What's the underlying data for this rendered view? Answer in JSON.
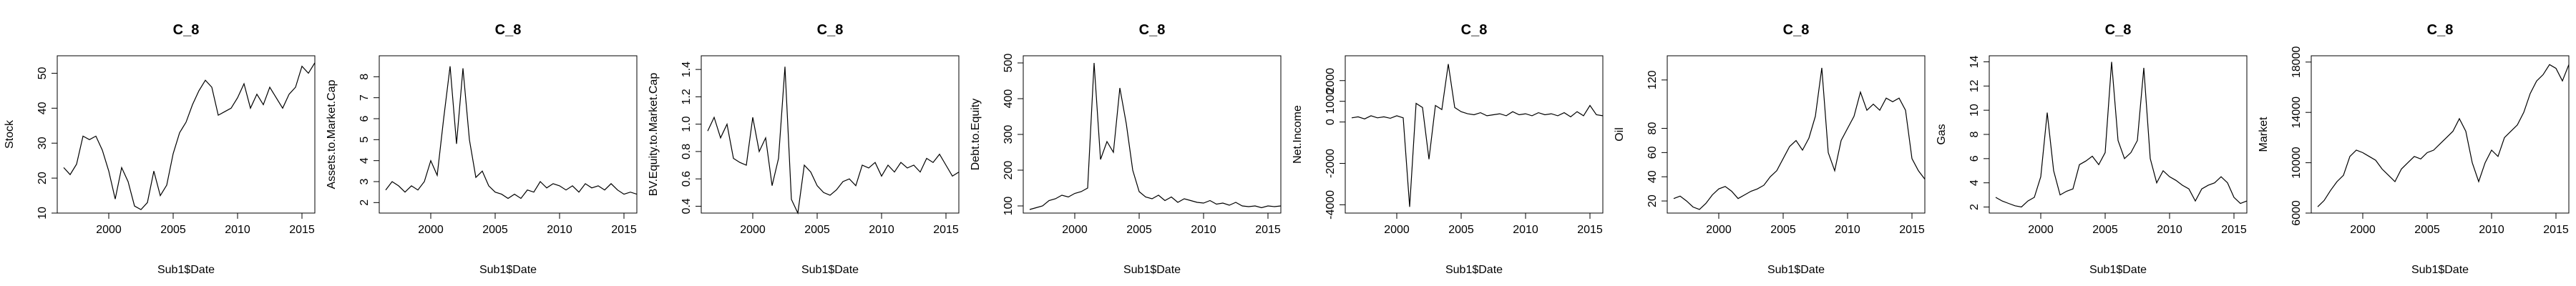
{
  "chart_data": [
    {
      "type": "line",
      "title": "C_8",
      "xlabel": "Sub1$Date",
      "ylabel": "Stock",
      "xlim": [
        1996,
        2016
      ],
      "ylim": [
        10,
        55
      ],
      "xticks": [
        "2000",
        "2005",
        "2010",
        "2015"
      ],
      "yticks": [
        "10",
        "20",
        "30",
        "40",
        "50"
      ],
      "x": [
        1996.5,
        1997,
        1997.5,
        1998,
        1998.5,
        1999,
        1999.5,
        2000,
        2000.5,
        2001,
        2001.5,
        2002,
        2002.5,
        2003,
        2003.5,
        2004,
        2004.5,
        2005,
        2005.5,
        2006,
        2006.5,
        2007,
        2007.5,
        2008,
        2008.5,
        2009,
        2009.5,
        2010,
        2010.5,
        2011,
        2011.5,
        2012,
        2012.5,
        2013,
        2013.5,
        2014,
        2014.5,
        2015,
        2015.5,
        2016
      ],
      "y": [
        23,
        21,
        24,
        32,
        31,
        32,
        28,
        22,
        14,
        23,
        19,
        12,
        11,
        13,
        22,
        15,
        18,
        27,
        33,
        36,
        41,
        45,
        48,
        46,
        38,
        39,
        40,
        43,
        47,
        40,
        44,
        41,
        46,
        43,
        40,
        44,
        46,
        52,
        50,
        53
      ]
    },
    {
      "type": "line",
      "title": "C_8",
      "xlabel": "Sub1$Date",
      "ylabel": "Assets.to.Market.Cap",
      "xlim": [
        1996,
        2016
      ],
      "ylim": [
        1.5,
        9
      ],
      "xticks": [
        "2000",
        "2005",
        "2010",
        "2015"
      ],
      "yticks": [
        "2",
        "3",
        "4",
        "5",
        "6",
        "7",
        "8"
      ],
      "x": [
        1996.5,
        1997,
        1997.5,
        1998,
        1998.5,
        1999,
        1999.5,
        2000,
        2000.5,
        2001,
        2001.5,
        2002,
        2002.5,
        2003,
        2003.5,
        2004,
        2004.5,
        2005,
        2005.5,
        2006,
        2006.5,
        2007,
        2007.5,
        2008,
        2008.5,
        2009,
        2009.5,
        2010,
        2010.5,
        2011,
        2011.5,
        2012,
        2012.5,
        2013,
        2013.5,
        2014,
        2014.5,
        2015,
        2015.5,
        2016
      ],
      "y": [
        2.6,
        3.0,
        2.8,
        2.5,
        2.8,
        2.6,
        3.0,
        4.0,
        3.3,
        6.0,
        8.5,
        4.8,
        8.4,
        5.0,
        3.2,
        3.5,
        2.8,
        2.5,
        2.4,
        2.2,
        2.4,
        2.2,
        2.6,
        2.5,
        3.0,
        2.7,
        2.9,
        2.8,
        2.6,
        2.8,
        2.5,
        2.9,
        2.7,
        2.8,
        2.6,
        2.9,
        2.6,
        2.4,
        2.5,
        2.4
      ]
    },
    {
      "type": "line",
      "title": "C_8",
      "xlabel": "Sub1$Date",
      "ylabel": "BV.Equity.to.Market.Cap",
      "xlim": [
        1996,
        2016
      ],
      "ylim": [
        0.35,
        1.5
      ],
      "xticks": [
        "2000",
        "2005",
        "2010",
        "2015"
      ],
      "yticks": [
        "0.4",
        "0.6",
        "0.8",
        "1.0",
        "1.2",
        "1.4"
      ],
      "x": [
        1996.5,
        1997,
        1997.5,
        1998,
        1998.5,
        1999,
        1999.5,
        2000,
        2000.5,
        2001,
        2001.5,
        2002,
        2002.5,
        2003,
        2003.5,
        2004,
        2004.5,
        2005,
        2005.5,
        2006,
        2006.5,
        2007,
        2007.5,
        2008,
        2008.5,
        2009,
        2009.5,
        2010,
        2010.5,
        2011,
        2011.5,
        2012,
        2012.5,
        2013,
        2013.5,
        2014,
        2014.5,
        2015,
        2015.5,
        2016
      ],
      "y": [
        0.95,
        1.05,
        0.9,
        1.0,
        0.75,
        0.72,
        0.7,
        1.05,
        0.8,
        0.9,
        0.55,
        0.75,
        1.42,
        0.45,
        0.35,
        0.7,
        0.65,
        0.55,
        0.5,
        0.48,
        0.52,
        0.58,
        0.6,
        0.55,
        0.7,
        0.68,
        0.72,
        0.62,
        0.7,
        0.65,
        0.72,
        0.68,
        0.7,
        0.65,
        0.75,
        0.72,
        0.78,
        0.7,
        0.62,
        0.65
      ]
    },
    {
      "type": "line",
      "title": "C_8",
      "xlabel": "Sub1$Date",
      "ylabel": "Debt.to.Equity",
      "xlim": [
        1996,
        2016
      ],
      "ylim": [
        80,
        520
      ],
      "xticks": [
        "2000",
        "2005",
        "2010",
        "2015"
      ],
      "yticks": [
        "100",
        "200",
        "300",
        "400",
        "500"
      ],
      "x": [
        1996.5,
        1997,
        1997.5,
        1998,
        1998.5,
        1999,
        1999.5,
        2000,
        2000.5,
        2001,
        2001.5,
        2002,
        2002.5,
        2003,
        2003.5,
        2004,
        2004.5,
        2005,
        2005.5,
        2006,
        2006.5,
        2007,
        2007.5,
        2008,
        2008.5,
        2009,
        2009.5,
        2010,
        2010.5,
        2011,
        2011.5,
        2012,
        2012.5,
        2013,
        2013.5,
        2014,
        2014.5,
        2015,
        2015.5,
        2016
      ],
      "y": [
        90,
        95,
        100,
        115,
        120,
        130,
        125,
        135,
        140,
        150,
        500,
        230,
        280,
        250,
        430,
        330,
        200,
        140,
        125,
        120,
        130,
        115,
        125,
        110,
        120,
        115,
        110,
        108,
        115,
        105,
        108,
        102,
        110,
        100,
        98,
        100,
        95,
        100,
        98,
        100
      ]
    },
    {
      "type": "line",
      "title": "C_8",
      "xlabel": "Sub1$Date",
      "ylabel": "Net.Income",
      "xlim": [
        1996,
        2016
      ],
      "ylim": [
        -4400,
        3200
      ],
      "xticks": [
        "2000",
        "2005",
        "2010",
        "2015"
      ],
      "yticks": [
        "-4000",
        "-2000",
        "0",
        "1000",
        "2000"
      ],
      "x": [
        1996.5,
        1997,
        1997.5,
        1998,
        1998.5,
        1999,
        1999.5,
        2000,
        2000.5,
        2001,
        2001.5,
        2002,
        2002.5,
        2003,
        2003.5,
        2004,
        2004.5,
        2005,
        2005.5,
        2006,
        2006.5,
        2007,
        2007.5,
        2008,
        2008.5,
        2009,
        2009.5,
        2010,
        2010.5,
        2011,
        2011.5,
        2012,
        2012.5,
        2013,
        2013.5,
        2014,
        2014.5,
        2015,
        2015.5,
        2016
      ],
      "y": [
        200,
        250,
        150,
        300,
        200,
        250,
        180,
        300,
        200,
        -4100,
        900,
        700,
        -1800,
        800,
        600,
        2800,
        700,
        500,
        400,
        350,
        450,
        300,
        350,
        400,
        300,
        500,
        350,
        400,
        300,
        450,
        350,
        400,
        300,
        450,
        250,
        500,
        300,
        800,
        350,
        300
      ]
    },
    {
      "type": "line",
      "title": "C_8",
      "xlabel": "Sub1$Date",
      "ylabel": "Oil",
      "xlim": [
        1996,
        2016
      ],
      "ylim": [
        10,
        140
      ],
      "xticks": [
        "2000",
        "2005",
        "2010",
        "2015"
      ],
      "yticks": [
        "20",
        "40",
        "60",
        "80",
        "120"
      ],
      "x": [
        1996.5,
        1997,
        1997.5,
        1998,
        1998.5,
        1999,
        1999.5,
        2000,
        2000.5,
        2001,
        2001.5,
        2002,
        2002.5,
        2003,
        2003.5,
        2004,
        2004.5,
        2005,
        2005.5,
        2006,
        2006.5,
        2007,
        2007.5,
        2008,
        2008.5,
        2009,
        2009.5,
        2010,
        2010.5,
        2011,
        2011.5,
        2012,
        2012.5,
        2013,
        2013.5,
        2014,
        2014.5,
        2015,
        2015.5,
        2016
      ],
      "y": [
        22,
        24,
        20,
        15,
        13,
        18,
        25,
        30,
        32,
        28,
        22,
        25,
        28,
        30,
        33,
        40,
        45,
        55,
        65,
        70,
        62,
        72,
        90,
        130,
        60,
        45,
        70,
        80,
        90,
        110,
        95,
        100,
        95,
        105,
        102,
        105,
        95,
        55,
        45,
        38
      ]
    },
    {
      "type": "line",
      "title": "C_8",
      "xlabel": "Sub1$Date",
      "ylabel": "Gas",
      "xlim": [
        1996,
        2016
      ],
      "ylim": [
        1.5,
        14.5
      ],
      "xticks": [
        "2000",
        "2005",
        "2010",
        "2015"
      ],
      "yticks": [
        "2",
        "4",
        "6",
        "8",
        "10",
        "12",
        "14"
      ],
      "x": [
        1996.5,
        1997,
        1997.5,
        1998,
        1998.5,
        1999,
        1999.5,
        2000,
        2000.5,
        2001,
        2001.5,
        2002,
        2002.5,
        2003,
        2003.5,
        2004,
        2004.5,
        2005,
        2005.5,
        2006,
        2006.5,
        2007,
        2007.5,
        2008,
        2008.5,
        2009,
        2009.5,
        2010,
        2010.5,
        2011,
        2011.5,
        2012,
        2012.5,
        2013,
        2013.5,
        2014,
        2014.5,
        2015,
        2015.5,
        2016
      ],
      "y": [
        2.8,
        2.5,
        2.3,
        2.1,
        2.0,
        2.5,
        2.8,
        4.5,
        9.8,
        5.0,
        3.0,
        3.3,
        3.5,
        5.5,
        5.8,
        6.2,
        5.5,
        6.5,
        14.0,
        7.5,
        6.0,
        6.5,
        7.5,
        13.5,
        6.0,
        4.0,
        5.0,
        4.5,
        4.2,
        3.8,
        3.5,
        2.5,
        3.5,
        3.8,
        4.0,
        4.5,
        4.0,
        2.8,
        2.3,
        2.5
      ]
    },
    {
      "type": "line",
      "title": "C_8",
      "xlabel": "Sub1$Date",
      "ylabel": "Market",
      "xlim": [
        1996,
        2016
      ],
      "ylim": [
        6000,
        18500
      ],
      "xticks": [
        "2000",
        "2005",
        "2010",
        "2015"
      ],
      "yticks": [
        "6000",
        "10000",
        "14000",
        "18000"
      ],
      "x": [
        1996.5,
        1997,
        1997.5,
        1998,
        1998.5,
        1999,
        1999.5,
        2000,
        2000.5,
        2001,
        2001.5,
        2002,
        2002.5,
        2003,
        2003.5,
        2004,
        2004.5,
        2005,
        2005.5,
        2006,
        2006.5,
        2007,
        2007.5,
        2008,
        2008.5,
        2009,
        2009.5,
        2010,
        2010.5,
        2011,
        2011.5,
        2012,
        2012.5,
        2013,
        2013.5,
        2014,
        2014.5,
        2015,
        2015.5,
        2016
      ],
      "y": [
        6500,
        7000,
        7800,
        8500,
        9000,
        10500,
        11000,
        10800,
        10500,
        10200,
        9500,
        9000,
        8500,
        9500,
        10000,
        10500,
        10300,
        10800,
        11000,
        11500,
        12000,
        12500,
        13500,
        12500,
        10000,
        8500,
        10000,
        11000,
        10500,
        12000,
        12500,
        13000,
        14000,
        15500,
        16500,
        17000,
        17800,
        17500,
        16500,
        17800
      ]
    }
  ]
}
